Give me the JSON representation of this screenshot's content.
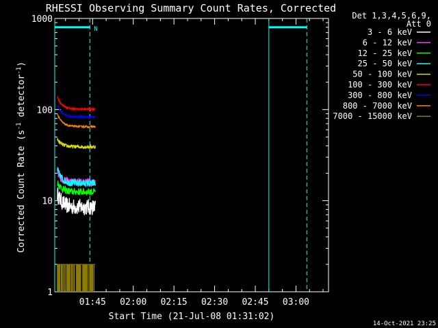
{
  "chart_data": {
    "type": "line",
    "title": "RHESSI Observing Summary Count Rates, Corrected",
    "xlabel": "Start Time (21-Jul-08 01:31:02)",
    "ylabel_main": "Corrected Count Rate (s",
    "ylabel_sup1": "-1",
    "ylabel_mid": " detector",
    "ylabel_sup2": "-1",
    "ylabel_end": ")",
    "y_scale": "log",
    "ylim": [
      1,
      1000
    ],
    "xlim": [
      "01:31:02",
      "03:12"
    ],
    "y_ticks": [
      "1",
      "10",
      "100",
      "1000"
    ],
    "x_ticks": [
      "01:45",
      "02:00",
      "02:15",
      "02:30",
      "02:45",
      "03:00"
    ],
    "legend_header": [
      "Det 1,3,4,5,6,9,",
      "Att 0"
    ],
    "legend_position": "top-right",
    "data_window": [
      "01:32",
      "01:46"
    ],
    "series": [
      {
        "name": "3 - 6 keV",
        "color": "#ffffff",
        "level": 8.5,
        "start": 12,
        "noise": 0.18
      },
      {
        "name": "6 - 12 keV",
        "color": "#ff40ff",
        "level": 16,
        "start": 20,
        "noise": 0.09
      },
      {
        "name": "12 - 25 keV",
        "color": "#00ff00",
        "level": 12.5,
        "start": 16,
        "noise": 0.08
      },
      {
        "name": "25 - 50 keV",
        "color": "#00ffff",
        "level": 15.5,
        "start": 22,
        "noise": 0.08
      },
      {
        "name": "50 - 100 keV",
        "color": "#dddd00",
        "level": 39,
        "start": 47,
        "noise": 0.04
      },
      {
        "name": "100 - 300 keV",
        "color": "#ff0000",
        "level": 101,
        "start": 138,
        "noise": 0.02
      },
      {
        "name": "300 - 800 keV",
        "color": "#0000ff",
        "level": 83,
        "start": 112,
        "noise": 0.02
      },
      {
        "name": "800 - 7000 keV",
        "color": "#ff8000",
        "level": 65,
        "start": 90,
        "noise": 0.02
      },
      {
        "name": "7000 - 15000 keV",
        "color": "#8b7d00",
        "level": 1.0,
        "start": 2,
        "noise": 0
      }
    ],
    "annotations": {
      "flag_label": "N",
      "flag_bars": [
        [
          "01:31:02",
          "01:44"
        ],
        [
          "02:50",
          "03:04"
        ]
      ],
      "solid_lines": [
        "01:31:02",
        "02:50"
      ],
      "dashed_lines": [
        "01:44",
        "03:04"
      ],
      "flag_level": 800,
      "flag_color": "#00ffff"
    }
  },
  "footer": {
    "timestamp": "14-Oct-2021 23:25"
  }
}
